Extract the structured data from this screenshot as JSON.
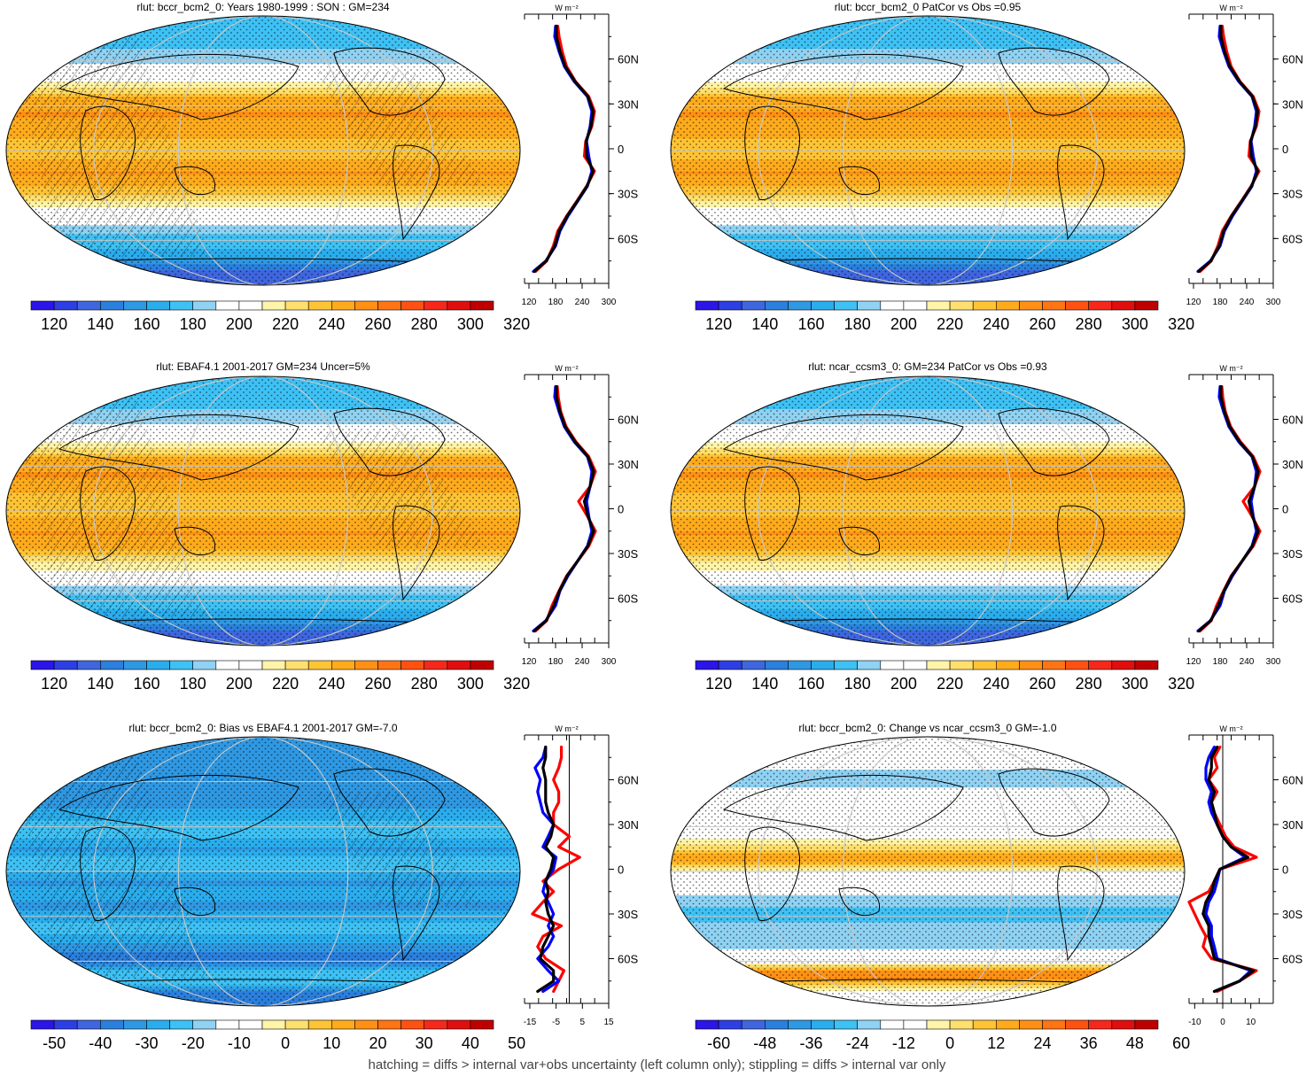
{
  "variable": "rlut",
  "profile_unit": "W m⁻²",
  "footnote": "hatching = diffs > internal var+obs uncertainty (left column only); stippling = diffs > internal var only",
  "colors": {
    "scale": [
      "#2b15e8",
      "#2d3fe3",
      "#3f66de",
      "#2b7fdd",
      "#2f98e2",
      "#2aaded",
      "#3ec1f4",
      "#8fd2f3",
      "#ffffff",
      "#ffffff",
      "#fff4a8",
      "#ffdf6e",
      "#ffc435",
      "#ffab1c",
      "#ff9015",
      "#ff7414",
      "#ff5212",
      "#f5281b",
      "#e10e0e",
      "#c00000"
    ],
    "profile_red": "#ff0000",
    "profile_blue": "#0000ff",
    "profile_black": "#000000",
    "coast": "#000000",
    "grid": "#c8c8c8"
  },
  "lat_ticks": [
    "60N",
    "30N",
    "0",
    "30S",
    "60S"
  ],
  "chart_data": [
    {
      "type": "heatmap",
      "panel": "row1-left",
      "title": "rlut: bccr_bcm2_0: Years 1980-1999 : SON : GM=234",
      "hatching": true,
      "stippling": true,
      "colorbar": {
        "levels": [
          "120",
          "140",
          "160",
          "180",
          "200",
          "220",
          "240",
          "260",
          "280",
          "300",
          "320"
        ],
        "min": 110,
        "max": 330
      },
      "profile": {
        "xlim": [
          110,
          300
        ],
        "xticks": [
          "120",
          "180",
          "240",
          "300"
        ],
        "zero_line": false,
        "lat": [
          -82,
          -75,
          -65,
          -55,
          -45,
          -35,
          -25,
          -15,
          -5,
          5,
          15,
          25,
          35,
          45,
          55,
          65,
          75,
          82
        ],
        "series": [
          {
            "color": "red",
            "values": [
              135,
              160,
              175,
              185,
              205,
              228,
              250,
              268,
              245,
              248,
              262,
              268,
              255,
              225,
              205,
              195,
              188,
              185
            ]
          },
          {
            "color": "blue",
            "values": [
              130,
              158,
              180,
              190,
              208,
              230,
              252,
              262,
              255,
              250,
              258,
              262,
              252,
              222,
              200,
              188,
              178,
              180
            ]
          },
          {
            "color": "black",
            "values": [
              132,
              159,
              178,
              188,
              206,
              229,
              251,
              265,
              250,
              249,
              260,
              265,
              253,
              224,
              202,
              190,
              182,
              182
            ]
          }
        ]
      }
    },
    {
      "type": "heatmap",
      "panel": "row1-right",
      "title": "rlut: bccr_bcm2_0 PatCor vs Obs =0.95",
      "hatching": false,
      "stippling": true,
      "colorbar": {
        "levels": [
          "120",
          "140",
          "160",
          "180",
          "200",
          "220",
          "240",
          "260",
          "280",
          "300",
          "320"
        ],
        "min": 110,
        "max": 330
      },
      "profile": {
        "xlim": [
          110,
          300
        ],
        "xticks": [
          "120",
          "180",
          "240",
          "300"
        ],
        "zero_line": false,
        "lat": [
          -82,
          -75,
          -65,
          -55,
          -45,
          -35,
          -25,
          -15,
          -5,
          5,
          15,
          25,
          35,
          45,
          55,
          65,
          75,
          82
        ],
        "series": [
          {
            "color": "red",
            "values": [
              135,
              160,
              175,
              185,
              205,
              228,
              250,
              268,
              245,
              248,
              262,
              268,
              255,
              225,
              205,
              195,
              188,
              185
            ]
          },
          {
            "color": "blue",
            "values": [
              130,
              158,
              180,
              190,
              208,
              230,
              252,
              262,
              255,
              250,
              258,
              262,
              252,
              222,
              200,
              188,
              178,
              180
            ]
          },
          {
            "color": "black",
            "values": [
              132,
              159,
              178,
              188,
              206,
              229,
              251,
              265,
              250,
              249,
              260,
              265,
              253,
              224,
              202,
              190,
              182,
              182
            ]
          }
        ]
      }
    },
    {
      "type": "heatmap",
      "panel": "row2-left",
      "title": "rlut: EBAF4.1 2001-2017 GM=234 Uncer=5%",
      "hatching": true,
      "stippling": true,
      "colorbar": {
        "levels": [
          "120",
          "140",
          "160",
          "180",
          "200",
          "220",
          "240",
          "260",
          "280",
          "300",
          "320"
        ],
        "min": 110,
        "max": 330
      },
      "profile": {
        "xlim": [
          110,
          300
        ],
        "xticks": [
          "120",
          "180",
          "240",
          "300"
        ],
        "zero_line": false,
        "lat": [
          -82,
          -75,
          -65,
          -55,
          -45,
          -35,
          -25,
          -15,
          -5,
          5,
          15,
          25,
          35,
          45,
          55,
          65,
          75,
          82
        ],
        "series": [
          {
            "color": "red",
            "values": [
              135,
              160,
              172,
              188,
              205,
              230,
              255,
              270,
              252,
              232,
              258,
              270,
              255,
              226,
              204,
              192,
              186,
              184
            ]
          },
          {
            "color": "blue",
            "values": [
              130,
              158,
              180,
              190,
              208,
              230,
              252,
              262,
              255,
              250,
              258,
              262,
              252,
              222,
              200,
              188,
              178,
              180
            ]
          },
          {
            "color": "black",
            "values": [
              132,
              159,
              176,
              189,
              206,
              230,
              253,
              266,
              253,
              245,
              258,
              266,
              253,
              224,
              202,
              190,
              182,
              182
            ]
          }
        ]
      }
    },
    {
      "type": "heatmap",
      "panel": "row2-right",
      "title": "rlut: ncar_ccsm3_0: GM=234 PatCor vs Obs =0.93",
      "hatching": false,
      "stippling": true,
      "colorbar": {
        "levels": [
          "120",
          "140",
          "160",
          "180",
          "200",
          "220",
          "240",
          "260",
          "280",
          "300",
          "320"
        ],
        "min": 110,
        "max": 330
      },
      "profile": {
        "xlim": [
          110,
          300
        ],
        "xticks": [
          "120",
          "180",
          "240",
          "300"
        ],
        "zero_line": false,
        "lat": [
          -82,
          -75,
          -65,
          -55,
          -45,
          -35,
          -25,
          -15,
          -5,
          5,
          15,
          25,
          35,
          45,
          55,
          65,
          75,
          82
        ],
        "series": [
          {
            "color": "red",
            "values": [
              135,
              160,
              172,
              188,
              205,
              230,
              255,
              270,
              252,
              232,
              258,
              270,
              255,
              226,
              204,
              192,
              186,
              184
            ]
          },
          {
            "color": "blue",
            "values": [
              130,
              158,
              180,
              190,
              208,
              230,
              252,
              262,
              255,
              250,
              258,
              262,
              252,
              222,
              200,
              188,
              178,
              180
            ]
          },
          {
            "color": "black",
            "values": [
              132,
              159,
              176,
              189,
              206,
              230,
              253,
              266,
              253,
              245,
              258,
              266,
              253,
              224,
              202,
              190,
              182,
              182
            ]
          }
        ]
      }
    },
    {
      "type": "heatmap",
      "panel": "row3-left",
      "title": "rlut: bccr_bcm2_0: Bias vs EBAF4.1 2001-2017  GM=-7.0",
      "hatching": true,
      "stippling": true,
      "colorbar": {
        "levels": [
          "-50",
          "-40",
          "-30",
          "-20",
          "-10",
          "0",
          "10",
          "20",
          "30",
          "40",
          "50"
        ],
        "min": -55,
        "max": 55
      },
      "profile": {
        "xlim": [
          -17,
          15
        ],
        "xticks": [
          "-15",
          "-5",
          "5",
          "15"
        ],
        "zero_line": true,
        "lat": [
          -82,
          -75,
          -68,
          -60,
          -52,
          -45,
          -38,
          -30,
          -22,
          -15,
          -8,
          0,
          8,
          15,
          22,
          30,
          38,
          45,
          52,
          60,
          68,
          75,
          82
        ],
        "series": [
          {
            "color": "red",
            "values": [
              -6,
              -4,
              -2,
              -9,
              -12,
              -10,
              -3,
              -14,
              -10,
              -6,
              -10,
              -4,
              4,
              -4,
              0,
              -6,
              -6,
              -4,
              -4,
              -6,
              -4,
              -3,
              -3
            ]
          },
          {
            "color": "blue",
            "values": [
              -10,
              -4,
              -8,
              -12,
              -8,
              -6,
              -8,
              -6,
              -8,
              -10,
              -9,
              -6,
              -5,
              -10,
              -8,
              -6,
              -10,
              -11,
              -12,
              -11,
              -13,
              -10,
              -9
            ]
          },
          {
            "color": "black",
            "values": [
              -12,
              -6,
              -6,
              -11,
              -10,
              -8,
              -6,
              -8,
              -9,
              -8,
              -9,
              -7,
              -6,
              -9,
              -7,
              -6,
              -8,
              -9,
              -9,
              -9,
              -10,
              -9,
              -9
            ]
          }
        ]
      }
    },
    {
      "type": "heatmap",
      "panel": "row3-right",
      "title": "rlut: bccr_bcm2_0: Change vs ncar_ccsm3_0 GM=-1.0",
      "hatching": false,
      "stippling": true,
      "colorbar": {
        "levels": [
          "-60",
          "-48",
          "-36",
          "-24",
          "-12",
          "0",
          "12",
          "24",
          "36",
          "48",
          "60"
        ],
        "min": -66,
        "max": 66
      },
      "profile": {
        "xlim": [
          -12,
          18
        ],
        "xticks": [
          "-10",
          "0",
          "10"
        ],
        "zero_line": true,
        "lat": [
          -82,
          -75,
          -68,
          -60,
          -52,
          -45,
          -38,
          -30,
          -22,
          -15,
          -8,
          0,
          8,
          15,
          22,
          30,
          38,
          45,
          52,
          60,
          68,
          75,
          82
        ],
        "series": [
          {
            "color": "red",
            "values": [
              -2,
              6,
              12,
              -4,
              -7,
              -6,
              -8,
              -10,
              -12,
              -5,
              -3,
              -1,
              12,
              4,
              1,
              -1,
              -3,
              -4,
              -2,
              -5,
              -2,
              -3,
              -1
            ]
          },
          {
            "color": "blue",
            "values": [
              -3,
              6,
              10,
              -2,
              -3,
              -4,
              -4,
              -6,
              -5,
              -3,
              -2,
              -1,
              8,
              3,
              0,
              -2,
              -4,
              -5,
              -4,
              -6,
              -6,
              -5,
              -3
            ]
          },
          {
            "color": "black",
            "values": [
              -3,
              6,
              11,
              -3,
              -4,
              -5,
              -5,
              -7,
              -6,
              -4,
              -3,
              -1,
              9,
              3,
              0,
              -2,
              -3,
              -4,
              -3,
              -5,
              -4,
              -4,
              -2
            ]
          }
        ]
      }
    }
  ]
}
